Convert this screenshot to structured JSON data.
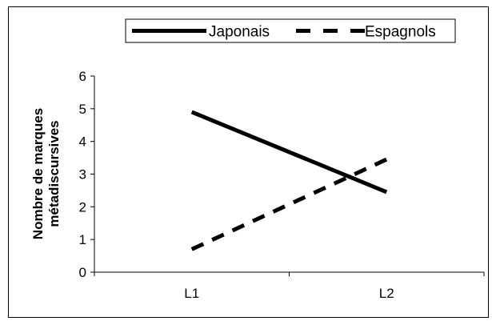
{
  "chart_data": {
    "type": "line",
    "categories": [
      "L1",
      "L2"
    ],
    "series": [
      {
        "name": "Japonais",
        "values": [
          4.9,
          2.45
        ],
        "color": "#000000",
        "dash": "solid"
      },
      {
        "name": "Espagnols",
        "values": [
          0.7,
          3.45
        ],
        "color": "#000000",
        "dash": "dashed"
      }
    ],
    "ylabel_line1": "Nombre de marques",
    "ylabel_line2": "métadiscursives",
    "xlabel": "",
    "title": "",
    "ylim": [
      0,
      6
    ],
    "yticks": [
      0,
      1,
      2,
      3,
      4,
      5,
      6
    ],
    "grid": false,
    "legend_position": "top"
  }
}
